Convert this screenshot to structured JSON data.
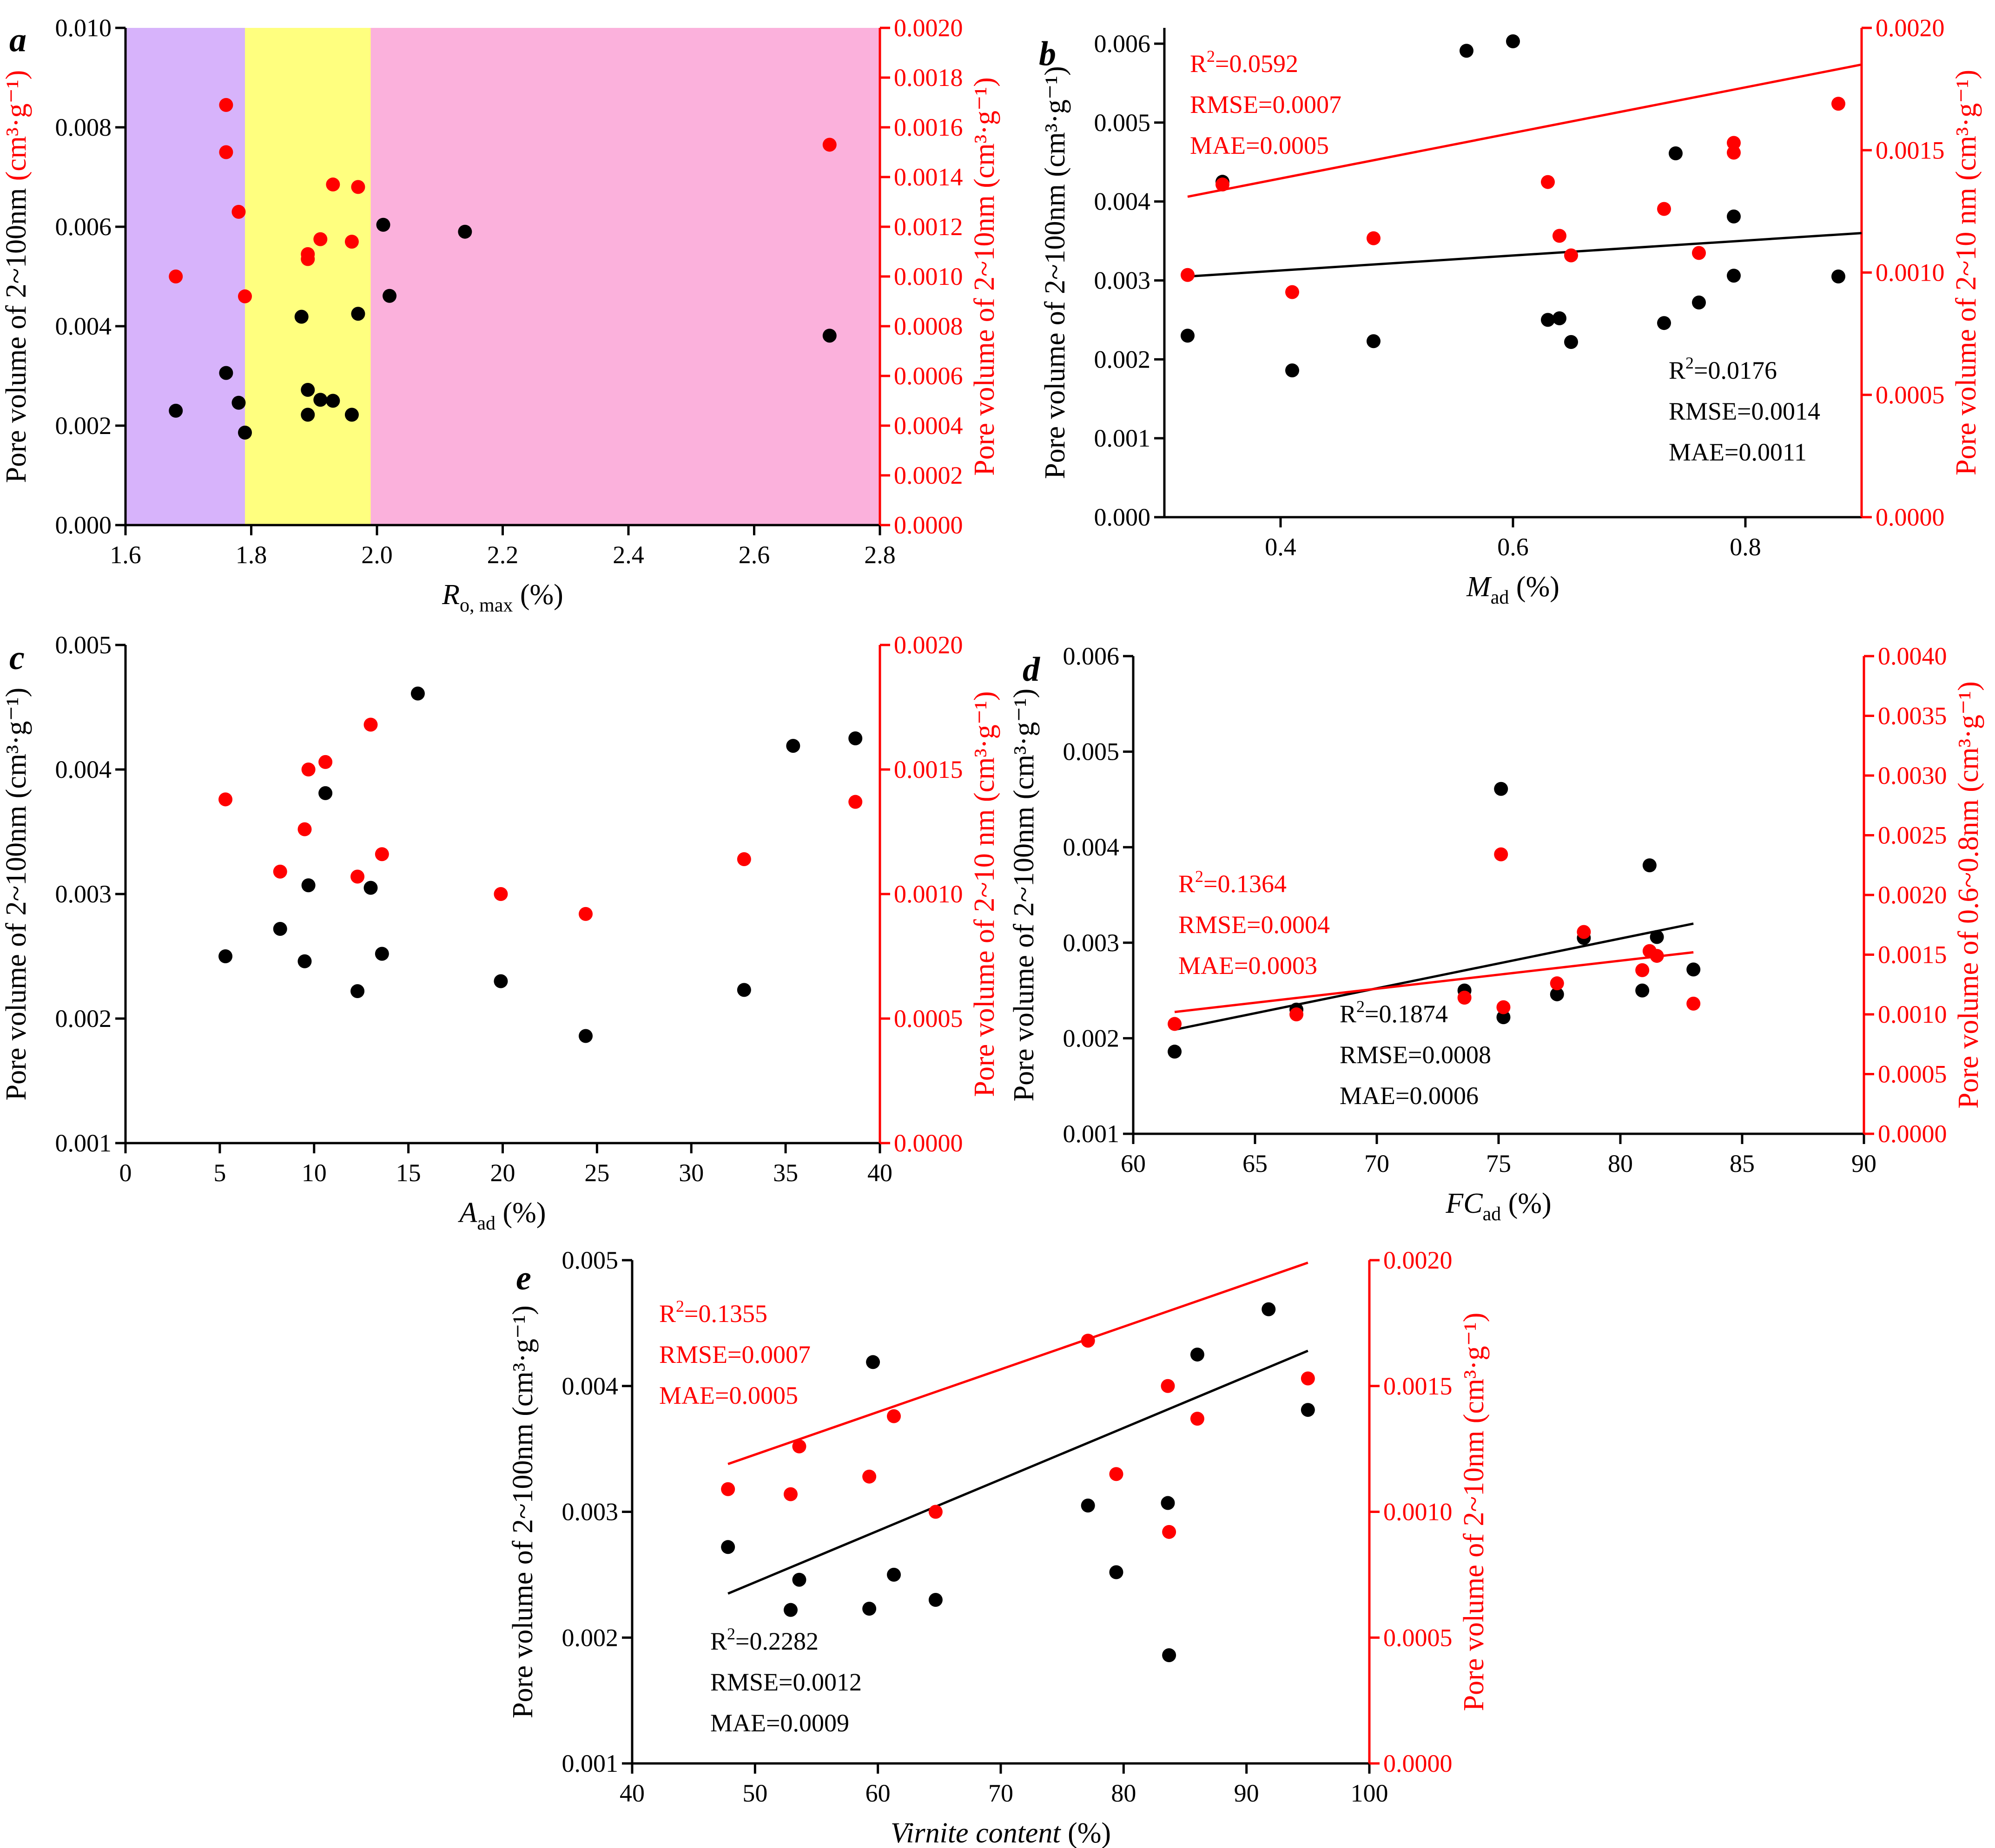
{
  "chart_data": [
    {
      "panel": "a",
      "type": "scatter",
      "xlabel": "R",
      "xlabel_sub": "o, max",
      "xlabel_suffix": " (%)",
      "xlabel_italic": true,
      "xlim": [
        1.6,
        2.8
      ],
      "xticks": [
        "1.6",
        "1.8",
        "2.0",
        "2.2",
        "2.4",
        "2.6",
        "2.8"
      ],
      "ylabel_left": "Pore volume of 2~100nm",
      "ylabel_left_unit": "(cm³·g⁻¹)",
      "ylim_left": [
        0.0,
        0.01
      ],
      "yticks_left": [
        "0.000",
        "0.002",
        "0.004",
        "0.006",
        "0.008",
        "0.010"
      ],
      "ylabel_right": "Pore volume of 2~10nm",
      "ylabel_right_unit": "(cm³·g⁻¹)",
      "ylim_right": [
        0.0,
        0.002
      ],
      "yticks_right": [
        "0.0000",
        "0.0002",
        "0.0004",
        "0.0006",
        "0.0008",
        "0.0010",
        "0.0012",
        "0.0014",
        "0.0016",
        "0.0018",
        "0.0020"
      ],
      "bands": [
        {
          "from": 1.6,
          "to": 1.79,
          "color": "#d7b3fb"
        },
        {
          "from": 1.79,
          "to": 1.99,
          "color": "#ffff7f"
        },
        {
          "from": 1.99,
          "to": 2.8,
          "color": "#fbb1dc"
        }
      ],
      "series": [
        {
          "axis": "left",
          "color": "#000000",
          "points": [
            [
              1.68,
              0.0023
            ],
            [
              1.76,
              0.00306
            ],
            [
              1.78,
              0.00246
            ],
            [
              1.79,
              0.00186
            ],
            [
              1.88,
              0.00419
            ],
            [
              1.89,
              0.00272
            ],
            [
              1.89,
              0.00222
            ],
            [
              1.91,
              0.00252
            ],
            [
              1.93,
              0.0025
            ],
            [
              1.96,
              0.00222
            ],
            [
              1.97,
              0.00425
            ],
            [
              2.01,
              0.00604
            ],
            [
              2.02,
              0.00461
            ],
            [
              2.14,
              0.0059
            ],
            [
              2.72,
              0.00381
            ]
          ]
        },
        {
          "axis": "right",
          "color": "#ff0000",
          "points": [
            [
              1.68,
              0.001
            ],
            [
              1.76,
              0.00169
            ],
            [
              1.76,
              0.0015
            ],
            [
              1.78,
              0.00126
            ],
            [
              1.79,
              0.00092
            ],
            [
              1.89,
              0.00109
            ],
            [
              1.89,
              0.00107
            ],
            [
              1.91,
              0.00115
            ],
            [
              1.93,
              0.00137
            ],
            [
              1.96,
              0.00114
            ],
            [
              1.97,
              0.00136
            ],
            [
              2.72,
              0.00153
            ]
          ]
        }
      ]
    },
    {
      "panel": "b",
      "type": "scatter",
      "xlabel": "M",
      "xlabel_sub": "ad",
      "xlabel_suffix": " (%)",
      "xlabel_italic": true,
      "xlim": [
        0.3,
        0.9
      ],
      "xticks_at": [
        0.4,
        0.6,
        0.8
      ],
      "xticks": [
        "0.4",
        "0.6",
        "0.8"
      ],
      "ylabel_left": "Pore volume of 2~100nm",
      "ylabel_left_unit": "(cm³·g⁻¹)",
      "ylim_left": [
        0.0,
        0.0062
      ],
      "yticks_left_at": [
        0.0,
        0.001,
        0.002,
        0.003,
        0.004,
        0.005,
        0.006
      ],
      "yticks_left": [
        "0.000",
        "0.001",
        "0.002",
        "0.003",
        "0.004",
        "0.005",
        "0.006"
      ],
      "ylabel_right": "Pore volume of 2~10 nm",
      "ylabel_right_unit": "(cm³·g⁻¹)",
      "ylim_right": [
        0.0,
        0.002
      ],
      "yticks_right": [
        "0.0000",
        "0.0005",
        "0.0010",
        "0.0015",
        "0.0020"
      ],
      "series": [
        {
          "axis": "left",
          "color": "#000000",
          "points": [
            [
              0.32,
              0.0023
            ],
            [
              0.35,
              0.00425
            ],
            [
              0.41,
              0.00186
            ],
            [
              0.48,
              0.00223
            ],
            [
              0.56,
              0.00591
            ],
            [
              0.6,
              0.00603
            ],
            [
              0.63,
              0.0025
            ],
            [
              0.64,
              0.00252
            ],
            [
              0.65,
              0.00222
            ],
            [
              0.73,
              0.00246
            ],
            [
              0.74,
              0.00461
            ],
            [
              0.76,
              0.00272
            ],
            [
              0.79,
              0.00381
            ],
            [
              0.79,
              0.00306
            ],
            [
              0.88,
              0.00305
            ]
          ],
          "fit": [
            [
              0.32,
              0.00305
            ],
            [
              0.9,
              0.0036
            ]
          ]
        },
        {
          "axis": "right",
          "color": "#ff0000",
          "points": [
            [
              0.32,
              0.00099
            ],
            [
              0.35,
              0.00136
            ],
            [
              0.41,
              0.00092
            ],
            [
              0.48,
              0.00114
            ],
            [
              0.63,
              0.00137
            ],
            [
              0.64,
              0.00115
            ],
            [
              0.65,
              0.00107
            ],
            [
              0.73,
              0.00126
            ],
            [
              0.76,
              0.00108
            ],
            [
              0.79,
              0.00153
            ],
            [
              0.79,
              0.00149
            ],
            [
              0.88,
              0.00169
            ]
          ],
          "fit": [
            [
              0.32,
              0.00131
            ],
            [
              0.9,
              0.00185
            ]
          ]
        }
      ],
      "annotations": [
        {
          "color": "#ff0000",
          "lines": [
            "R²=0.0592",
            "RMSE=0.0007",
            "MAE=0.0005"
          ]
        },
        {
          "color": "#000000",
          "lines": [
            "R²=0.0176",
            "RMSE=0.0014",
            "MAE=0.0011"
          ]
        }
      ]
    },
    {
      "panel": "c",
      "type": "scatter",
      "xlabel": "A",
      "xlabel_sub": "ad",
      "xlabel_suffix": " (%)",
      "xlabel_italic": true,
      "xlim": [
        0,
        40
      ],
      "xticks": [
        "0",
        "5",
        "10",
        "15",
        "20",
        "25",
        "30",
        "35",
        "40"
      ],
      "ylabel_left": "Pore volume of 2~100nm",
      "ylabel_left_unit": "(cm³·g⁻¹)",
      "ylim_left": [
        0.001,
        0.005
      ],
      "yticks_left": [
        "0.001",
        "0.002",
        "0.003",
        "0.004",
        "0.005"
      ],
      "ylabel_right": "Pore volume of 2~10 nm",
      "ylabel_right_unit": "(cm³·g⁻¹)",
      "ylim_right": [
        0.0,
        0.002
      ],
      "yticks_right": [
        "0.0000",
        "0.0005",
        "0.0010",
        "0.0015",
        "0.0020"
      ],
      "series": [
        {
          "axis": "left",
          "color": "#000000",
          "points": [
            [
              5.3,
              0.0025
            ],
            [
              8.2,
              0.00272
            ],
            [
              9.5,
              0.00246
            ],
            [
              9.7,
              0.00307
            ],
            [
              10.6,
              0.00381
            ],
            [
              12.3,
              0.00222
            ],
            [
              13,
              0.00305
            ],
            [
              13.6,
              0.00252
            ],
            [
              15.5,
              0.00461
            ],
            [
              19.9,
              0.0023
            ],
            [
              24.4,
              0.00186
            ],
            [
              32.8,
              0.00223
            ],
            [
              35.4,
              0.00419
            ],
            [
              38.7,
              0.00425
            ]
          ]
        },
        {
          "axis": "right",
          "color": "#ff0000",
          "points": [
            [
              5.3,
              0.00138
            ],
            [
              8.2,
              0.00109
            ],
            [
              9.5,
              0.00126
            ],
            [
              9.7,
              0.0015
            ],
            [
              10.6,
              0.00153
            ],
            [
              12.3,
              0.00107
            ],
            [
              13,
              0.00168
            ],
            [
              13.6,
              0.00116
            ],
            [
              19.9,
              0.001
            ],
            [
              24.4,
              0.00092
            ],
            [
              32.8,
              0.00114
            ],
            [
              38.7,
              0.00137
            ]
          ]
        }
      ]
    },
    {
      "panel": "d",
      "type": "scatter",
      "xlabel": "FC",
      "xlabel_sub": "ad",
      "xlabel_suffix": " (%)",
      "xlabel_italic": true,
      "xlim": [
        60,
        90
      ],
      "xticks": [
        "60",
        "65",
        "70",
        "75",
        "80",
        "85",
        "90"
      ],
      "ylabel_left": "Pore volume of 2~100nm",
      "ylabel_left_unit": "(cm³·g⁻¹)",
      "ylim_left": [
        0.001,
        0.006
      ],
      "yticks_left": [
        "0.001",
        "0.002",
        "0.003",
        "0.004",
        "0.005",
        "0.006"
      ],
      "ylabel_right": "Pore volume of 0.6~0.8nm",
      "ylabel_right_unit": "(cm³·g⁻¹)",
      "ylim_right": [
        0.0,
        0.004
      ],
      "yticks_right": [
        "0.0000",
        "0.0005",
        "0.0010",
        "0.0015",
        "0.0020",
        "0.0025",
        "0.0030",
        "0.0035",
        "0.0040"
      ],
      "series": [
        {
          "axis": "left",
          "color": "#000000",
          "points": [
            [
              61.7,
              0.00186
            ],
            [
              66.7,
              0.0023
            ],
            [
              73.6,
              0.0025
            ],
            [
              75.1,
              0.00461
            ],
            [
              75.2,
              0.00222
            ],
            [
              77.4,
              0.00246
            ],
            [
              78.5,
              0.00305
            ],
            [
              80.9,
              0.0025
            ],
            [
              81.2,
              0.00381
            ],
            [
              81.5,
              0.00306
            ],
            [
              83,
              0.00272
            ]
          ],
          "fit": [
            [
              61.7,
              0.00209
            ],
            [
              83,
              0.0032
            ]
          ]
        },
        {
          "axis": "right",
          "color": "#ff0000",
          "points": [
            [
              61.7,
              0.00092
            ],
            [
              66.7,
              0.001
            ],
            [
              73.6,
              0.00114
            ],
            [
              75.1,
              0.00234
            ],
            [
              75.2,
              0.00106
            ],
            [
              77.4,
              0.00126
            ],
            [
              78.5,
              0.00169
            ],
            [
              80.9,
              0.00137
            ],
            [
              81.2,
              0.00153
            ],
            [
              81.5,
              0.00149
            ],
            [
              83,
              0.00109
            ]
          ],
          "fit": [
            [
              61.7,
              0.00102
            ],
            [
              83,
              0.00152
            ]
          ]
        }
      ],
      "annotations": [
        {
          "color": "#ff0000",
          "lines": [
            "R²=0.1364",
            "RMSE=0.0004",
            "MAE=0.0003"
          ]
        },
        {
          "color": "#000000",
          "lines": [
            "R²=0.1874",
            "RMSE=0.0008",
            "MAE=0.0006"
          ]
        }
      ]
    },
    {
      "panel": "e",
      "type": "scatter",
      "xlabel": "Virnite content",
      "xlabel_sub": "",
      "xlabel_suffix": " (%)",
      "xlabel_italic": true,
      "xlim": [
        40,
        100
      ],
      "xticks": [
        "40",
        "50",
        "60",
        "70",
        "80",
        "90",
        "100"
      ],
      "ylabel_left": "Pore volume of 2~100nm",
      "ylabel_left_unit": "(cm³·g⁻¹)",
      "ylim_left": [
        0.001,
        0.005
      ],
      "yticks_left": [
        "0.001",
        "0.002",
        "0.003",
        "0.004",
        "0.005"
      ],
      "ylabel_right": "Pore volume of 2~10nm",
      "ylabel_right_unit": "(cm³·g⁻¹)",
      "ylim_right": [
        0.0,
        0.002
      ],
      "yticks_right": [
        "0.0000",
        "0.0005",
        "0.0010",
        "0.0015",
        "0.0020"
      ],
      "series": [
        {
          "axis": "left",
          "color": "#000000",
          "points": [
            [
              47.8,
              0.00272
            ],
            [
              52.9,
              0.00222
            ],
            [
              53.6,
              0.00246
            ],
            [
              59.3,
              0.00223
            ],
            [
              59.6,
              0.00419
            ],
            [
              61.3,
              0.0025
            ],
            [
              64.7,
              0.0023
            ],
            [
              77.1,
              0.00305
            ],
            [
              79.4,
              0.00252
            ],
            [
              83.6,
              0.00307
            ],
            [
              83.7,
              0.00186
            ],
            [
              86,
              0.00425
            ],
            [
              91.8,
              0.00461
            ],
            [
              95,
              0.00381
            ]
          ],
          "fit": [
            [
              47.8,
              0.00235
            ],
            [
              95,
              0.00428
            ]
          ]
        },
        {
          "axis": "right",
          "color": "#ff0000",
          "points": [
            [
              47.8,
              0.00109
            ],
            [
              52.9,
              0.00107
            ],
            [
              53.6,
              0.00126
            ],
            [
              59.3,
              0.00114
            ],
            [
              61.3,
              0.00138
            ],
            [
              64.7,
              0.001
            ],
            [
              77.1,
              0.00168
            ],
            [
              79.4,
              0.00115
            ],
            [
              83.6,
              0.0015
            ],
            [
              83.7,
              0.00092
            ],
            [
              86,
              0.00137
            ],
            [
              95,
              0.00153
            ]
          ],
          "fit": [
            [
              47.8,
              0.00119
            ],
            [
              95,
              0.00199
            ]
          ]
        }
      ],
      "annotations": [
        {
          "color": "#ff0000",
          "lines": [
            "R²=0.1355",
            "RMSE=0.0007",
            "MAE=0.0005"
          ]
        },
        {
          "color": "#000000",
          "lines": [
            "R²=0.2282",
            "RMSE=0.0012",
            "MAE=0.0009"
          ]
        }
      ]
    }
  ]
}
